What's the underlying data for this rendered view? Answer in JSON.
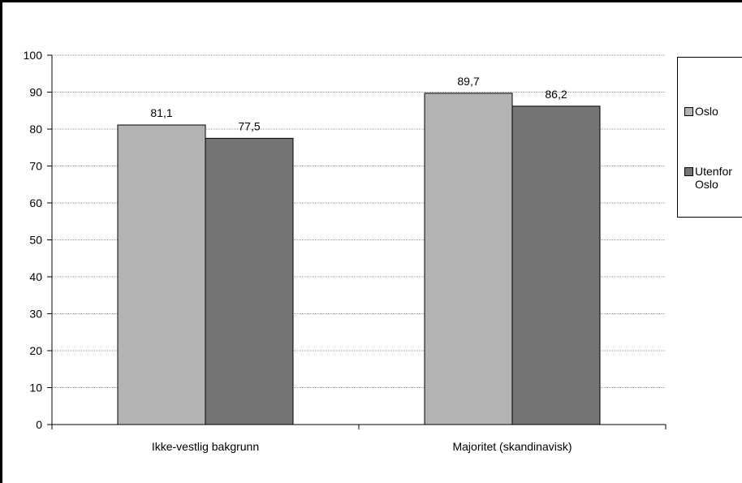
{
  "chart_data": {
    "type": "bar",
    "categories": [
      "Ikke-vestlig bakgrunn",
      "Majoritet (skandinavisk)"
    ],
    "series": [
      {
        "name": "Oslo",
        "values": [
          81.1,
          89.7
        ],
        "labels": [
          "81,1",
          "89,7"
        ],
        "color": "#b3b3b5"
      },
      {
        "name": "Utenfor Oslo",
        "values": [
          77.5,
          86.2
        ],
        "labels": [
          "77,5",
          "86,2"
        ],
        "color": "#747476"
      }
    ],
    "ylim": [
      0,
      100
    ],
    "yticks": [
      0,
      10,
      20,
      30,
      40,
      50,
      60,
      70,
      80,
      90,
      100
    ],
    "grid": true,
    "legend_position": "right",
    "title": "",
    "xlabel": "",
    "ylabel": ""
  }
}
